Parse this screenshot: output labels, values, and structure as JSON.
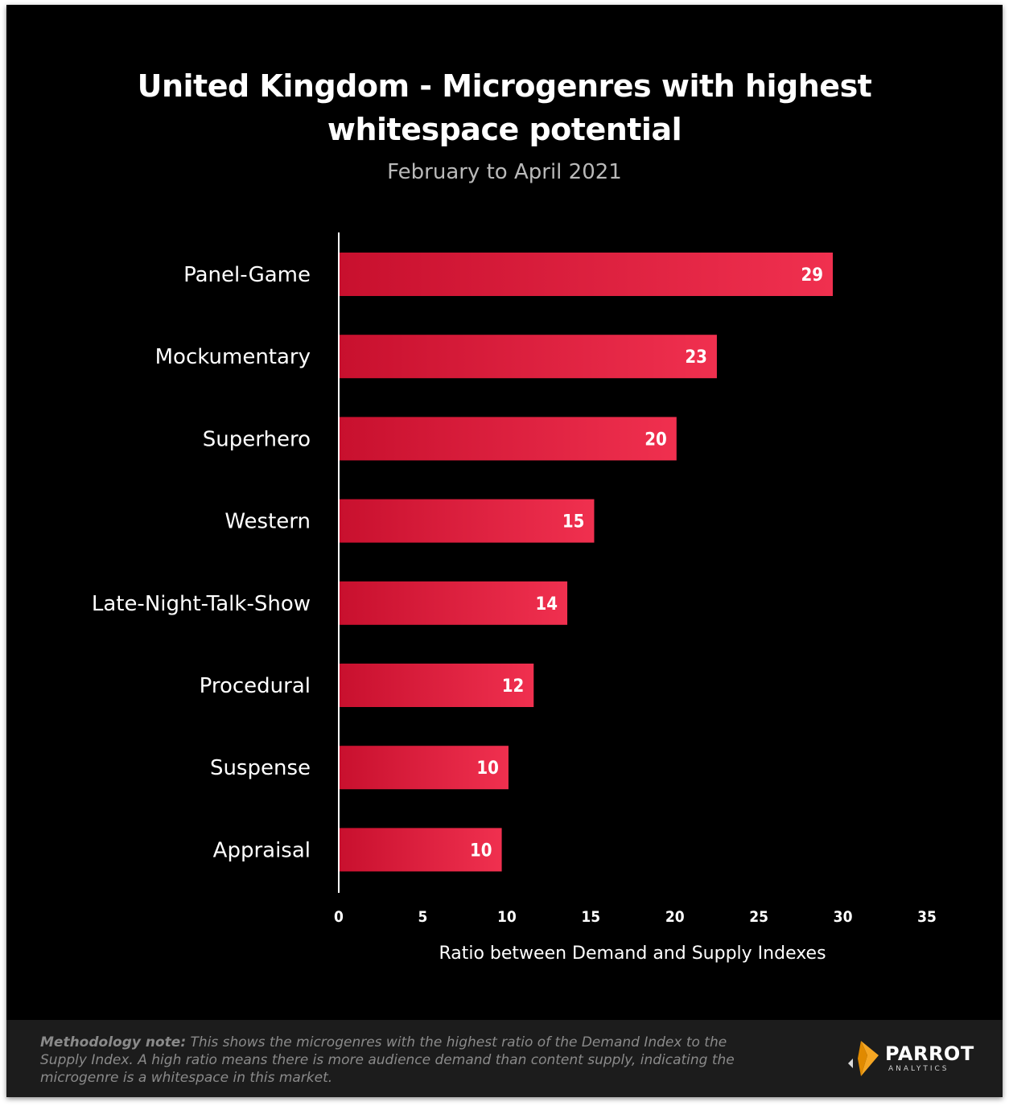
{
  "chart_data": {
    "type": "bar",
    "orientation": "horizontal",
    "title": "United Kingdom - Microgenres with highest whitespace potential",
    "title_lines": [
      "United Kingdom - Microgenres with highest",
      "whitespace potential"
    ],
    "subtitle": "February to April 2021",
    "xlabel": "Ratio between Demand and Supply Indexes",
    "ylabel": "",
    "categories": [
      "Panel-Game",
      "Mockumentary",
      "Superhero",
      "Western",
      "Late-Night-Talk-Show",
      "Procedural",
      "Suspense",
      "Appraisal"
    ],
    "values": [
      29.4,
      22.5,
      20.1,
      15.2,
      13.6,
      11.6,
      10.1,
      9.7
    ],
    "data_labels": [
      "29",
      "23",
      "20",
      "15",
      "14",
      "12",
      "10",
      "10"
    ],
    "xlim": [
      0,
      35
    ],
    "xticks": [
      "0",
      "5",
      "10",
      "15",
      "20",
      "25",
      "30",
      "35"
    ],
    "grid": false,
    "bar_color_start": "#c8102e",
    "bar_color_end": "#f0304f"
  },
  "footer": {
    "note_label": "Methodology note:",
    "note_text": " This shows the microgenres with the highest ratio of the Demand Index to the Supply Index. A high ratio means there is more audience demand than content supply, indicating the microgenre is a whitespace in this market.",
    "logo_name": "PARROT",
    "logo_sub": "ANALYTICS",
    "logo_icon": "parrot-logo-icon",
    "logo_color": "#f5a623"
  }
}
